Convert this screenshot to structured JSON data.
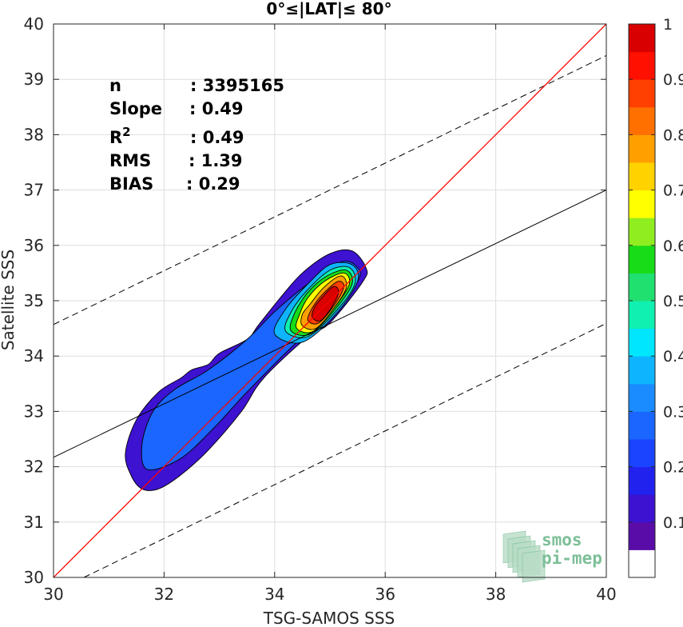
{
  "chart_data": {
    "type": "scatter",
    "subtype": "density-contour",
    "title": "0°≤|LAT|≤ 80°",
    "xlabel": "TSG-SAMOS SSS",
    "ylabel": "Satellite SSS",
    "xlim": [
      30,
      40
    ],
    "ylim": [
      30,
      40
    ],
    "xticks": [
      "30",
      "32",
      "34",
      "36",
      "38",
      "40"
    ],
    "yticks": [
      "30",
      "31",
      "32",
      "33",
      "34",
      "35",
      "36",
      "37",
      "38",
      "39",
      "40"
    ],
    "grid": true,
    "stats": [
      {
        "label": "n",
        "value": ": 3395165"
      },
      {
        "label": "Slope",
        "value": ": 0.49"
      },
      {
        "label": "R",
        "sup": "2",
        "value": ": 0.49"
      },
      {
        "label": "RMS",
        "value": ": 1.39"
      },
      {
        "label": "BIAS",
        "value": ": 0.29"
      }
    ],
    "lines": {
      "identity": {
        "x": [
          30,
          40
        ],
        "y": [
          30,
          40
        ],
        "color": "#ff0000"
      },
      "regression": {
        "x": [
          30,
          40
        ],
        "y": [
          32.17,
          37.0
        ],
        "color": "#000000"
      },
      "upper_bound": {
        "x": [
          30,
          40
        ],
        "y": [
          34.57,
          39.43
        ],
        "style": "dashed"
      },
      "lower_bound": {
        "x": [
          30.55,
          40
        ],
        "y": [
          30,
          34.59
        ],
        "style": "dashed"
      }
    },
    "contours": [
      {
        "level": 0.05,
        "points": [
          [
            31.6,
            31.6
          ],
          [
            31.9,
            31.6
          ],
          [
            32.3,
            31.85
          ],
          [
            32.8,
            32.3
          ],
          [
            33.4,
            33.0
          ],
          [
            33.8,
            33.6
          ],
          [
            34.6,
            34.35
          ],
          [
            35.0,
            34.6
          ],
          [
            35.6,
            35.35
          ],
          [
            35.65,
            35.6
          ],
          [
            35.4,
            35.9
          ],
          [
            35.0,
            35.85
          ],
          [
            34.5,
            35.5
          ],
          [
            34.1,
            35.05
          ],
          [
            33.7,
            34.55
          ],
          [
            33.5,
            34.3
          ],
          [
            33.0,
            34.05
          ],
          [
            32.8,
            33.85
          ],
          [
            32.5,
            33.75
          ],
          [
            32.3,
            33.6
          ],
          [
            31.9,
            33.35
          ],
          [
            31.5,
            32.85
          ],
          [
            31.3,
            32.25
          ],
          [
            31.4,
            31.85
          ]
        ]
      },
      {
        "level": 0.2,
        "points": [
          [
            31.7,
            31.95
          ],
          [
            32.3,
            32.15
          ],
          [
            32.9,
            32.7
          ],
          [
            33.5,
            33.35
          ],
          [
            34.4,
            34.25
          ],
          [
            35.0,
            34.7
          ],
          [
            35.5,
            35.35
          ],
          [
            35.5,
            35.6
          ],
          [
            35.2,
            35.7
          ],
          [
            34.6,
            35.3
          ],
          [
            34.0,
            34.8
          ],
          [
            33.5,
            34.3
          ],
          [
            32.8,
            33.75
          ],
          [
            32.2,
            33.4
          ],
          [
            31.8,
            33.0
          ],
          [
            31.6,
            32.4
          ]
        ]
      },
      {
        "level": 0.3,
        "points": [
          [
            34.0,
            34.4
          ],
          [
            34.5,
            34.25
          ],
          [
            35.1,
            34.75
          ],
          [
            35.5,
            35.35
          ],
          [
            35.4,
            35.65
          ],
          [
            35.0,
            35.65
          ],
          [
            34.6,
            35.3
          ],
          [
            34.2,
            34.85
          ]
        ]
      },
      {
        "level": 0.4,
        "points": [
          [
            34.2,
            34.45
          ],
          [
            34.6,
            34.35
          ],
          [
            35.1,
            34.8
          ],
          [
            35.45,
            35.3
          ],
          [
            35.35,
            35.6
          ],
          [
            35.0,
            35.55
          ],
          [
            34.6,
            35.2
          ],
          [
            34.3,
            34.8
          ]
        ]
      },
      {
        "level": 0.5,
        "points": [
          [
            34.3,
            34.45
          ],
          [
            34.65,
            34.4
          ],
          [
            35.1,
            34.85
          ],
          [
            35.4,
            35.3
          ],
          [
            35.3,
            35.55
          ],
          [
            34.95,
            35.45
          ],
          [
            34.6,
            35.15
          ],
          [
            34.35,
            34.75
          ]
        ]
      },
      {
        "level": 0.6,
        "points": [
          [
            34.4,
            34.5
          ],
          [
            34.7,
            34.45
          ],
          [
            35.1,
            34.9
          ],
          [
            35.35,
            35.3
          ],
          [
            35.25,
            35.5
          ],
          [
            34.9,
            35.35
          ],
          [
            34.6,
            35.05
          ],
          [
            34.45,
            34.75
          ]
        ]
      },
      {
        "level": 0.7,
        "points": [
          [
            34.5,
            34.55
          ],
          [
            34.75,
            34.5
          ],
          [
            35.1,
            34.9
          ],
          [
            35.3,
            35.25
          ],
          [
            35.2,
            35.45
          ],
          [
            34.9,
            35.25
          ],
          [
            34.65,
            34.95
          ],
          [
            34.5,
            34.75
          ]
        ]
      },
      {
        "level": 0.8,
        "points": [
          [
            34.6,
            34.65
          ],
          [
            34.8,
            34.6
          ],
          [
            35.1,
            34.95
          ],
          [
            35.25,
            35.25
          ],
          [
            35.15,
            35.35
          ],
          [
            34.9,
            35.15
          ],
          [
            34.7,
            34.9
          ]
        ]
      },
      {
        "level": 0.9,
        "points": [
          [
            34.68,
            34.7
          ],
          [
            34.85,
            34.65
          ],
          [
            35.1,
            35.0
          ],
          [
            35.15,
            35.2
          ],
          [
            35.05,
            35.25
          ],
          [
            34.85,
            35.05
          ],
          [
            34.72,
            34.88
          ]
        ]
      }
    ],
    "colorbar": {
      "ticks": [
        "0.1",
        "0.2",
        "0.3",
        "0.4",
        "0.5",
        "0.6",
        "0.7",
        "0.8",
        "0.9",
        "1"
      ],
      "levels": [
        0,
        0.05,
        0.1,
        0.15,
        0.2,
        0.25,
        0.3,
        0.35,
        0.4,
        0.45,
        0.5,
        0.55,
        0.6,
        0.65,
        0.7,
        0.75,
        0.8,
        0.85,
        0.9,
        0.95,
        1.0
      ],
      "colors": [
        "#ffffff",
        "#5a0ca8",
        "#3d12d0",
        "#2222ee",
        "#1a44ff",
        "#1a66ff",
        "#1a8cff",
        "#0fb4ff",
        "#00e6ff",
        "#10f0b0",
        "#20e070",
        "#18dc18",
        "#90ee20",
        "#ffff00",
        "#ffd200",
        "#ffa000",
        "#ff7000",
        "#ff4000",
        "#ff1000",
        "#d80000",
        "#820000"
      ]
    },
    "watermark": [
      "smos",
      "pi-mep"
    ]
  }
}
